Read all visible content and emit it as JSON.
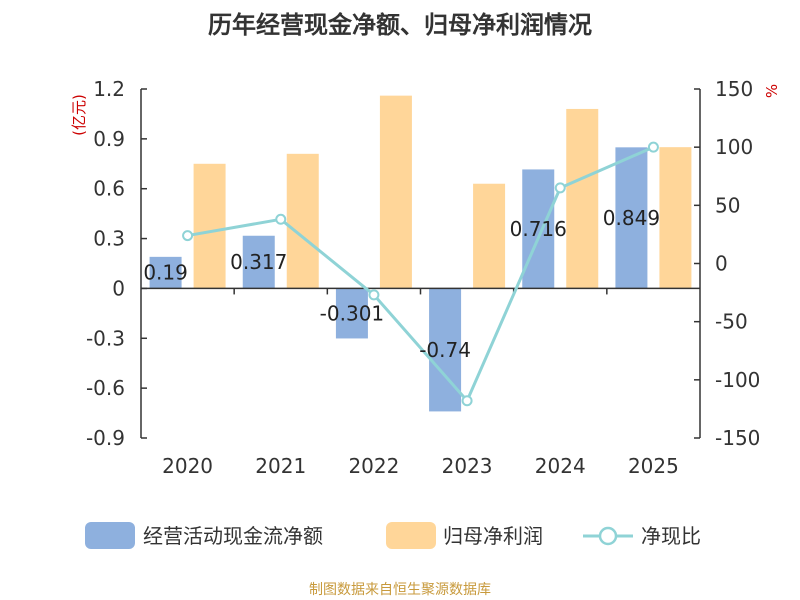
{
  "chart_data": {
    "type": "bar",
    "title": "历年经营现金净额、归母净利润情况",
    "categories": [
      "2020",
      "2021",
      "2022",
      "2023",
      "2024",
      "2025"
    ],
    "ylabel_left": "(亿元)",
    "ylabel_right": "%",
    "ylim_left": [
      -0.9,
      1.2
    ],
    "ylim_right": [
      -150,
      150
    ],
    "yticks_left": [
      "1.2",
      "0.9",
      "0.6",
      "0.3",
      "0",
      "-0.3",
      "-0.6",
      "-0.9"
    ],
    "yticks_right": [
      "150",
      "100",
      "50",
      "0",
      "-50",
      "-100",
      "-150"
    ],
    "series": [
      {
        "name": "经营活动现金流净额",
        "type": "bar",
        "axis": "left",
        "color": "#8eb0de",
        "values": [
          0.19,
          0.317,
          -0.301,
          -0.74,
          0.716,
          0.849
        ],
        "labels": [
          "0.19",
          "0.317",
          "-0.301",
          "-0.74",
          "0.716",
          "0.849"
        ]
      },
      {
        "name": "归母净利润",
        "type": "bar",
        "axis": "left",
        "color": "#ffd699",
        "values": [
          0.75,
          0.81,
          1.16,
          0.63,
          1.08,
          0.85
        ]
      },
      {
        "name": "净现比",
        "type": "line",
        "axis": "right",
        "color": "#8fd3d6",
        "values": [
          24,
          38,
          -27,
          -118,
          65,
          100
        ]
      }
    ],
    "grid": false,
    "legend_position": "bottom"
  },
  "colors": {
    "title": "#333333",
    "axis": "#333333",
    "unit": "#cc0000",
    "source": "#c89a3c"
  },
  "source": "制图数据来自恒生聚源数据库"
}
